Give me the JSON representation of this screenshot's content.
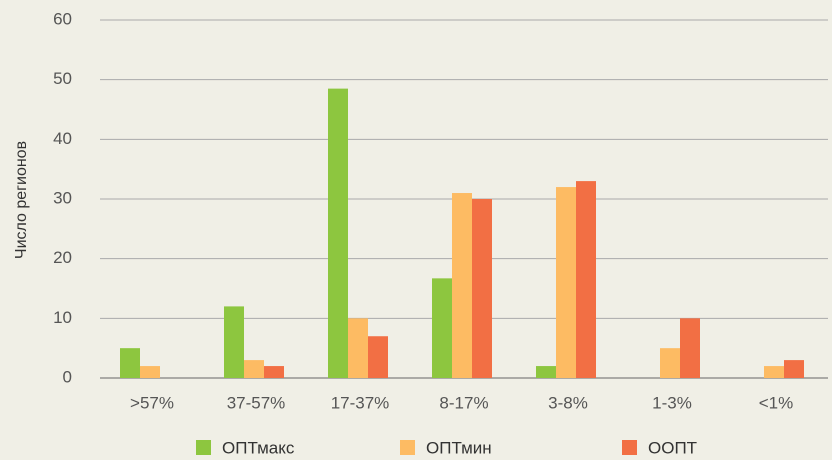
{
  "chart_data": {
    "type": "bar",
    "y_label": "Число регионов",
    "categories": [
      ">57%",
      "37-57%",
      "17-37%",
      "8-17%",
      "3-8%",
      "1-3%",
      "<1%"
    ],
    "series": [
      {
        "name": "ОПТмакс",
        "color": "#8dc63f",
        "values": [
          5,
          12,
          48.5,
          16.7,
          2,
          0,
          0
        ]
      },
      {
        "name": "ОПТмин",
        "color": "#fdbb63",
        "values": [
          2,
          3,
          10,
          31,
          32,
          5,
          2
        ]
      },
      {
        "name": "ООПТ",
        "color": "#f26f44",
        "values": [
          0,
          2,
          7,
          30,
          33,
          10,
          3
        ]
      }
    ],
    "ylim": [
      0,
      60
    ],
    "yticks": [
      0,
      10,
      20,
      30,
      40,
      50,
      60
    ],
    "grid": true
  }
}
